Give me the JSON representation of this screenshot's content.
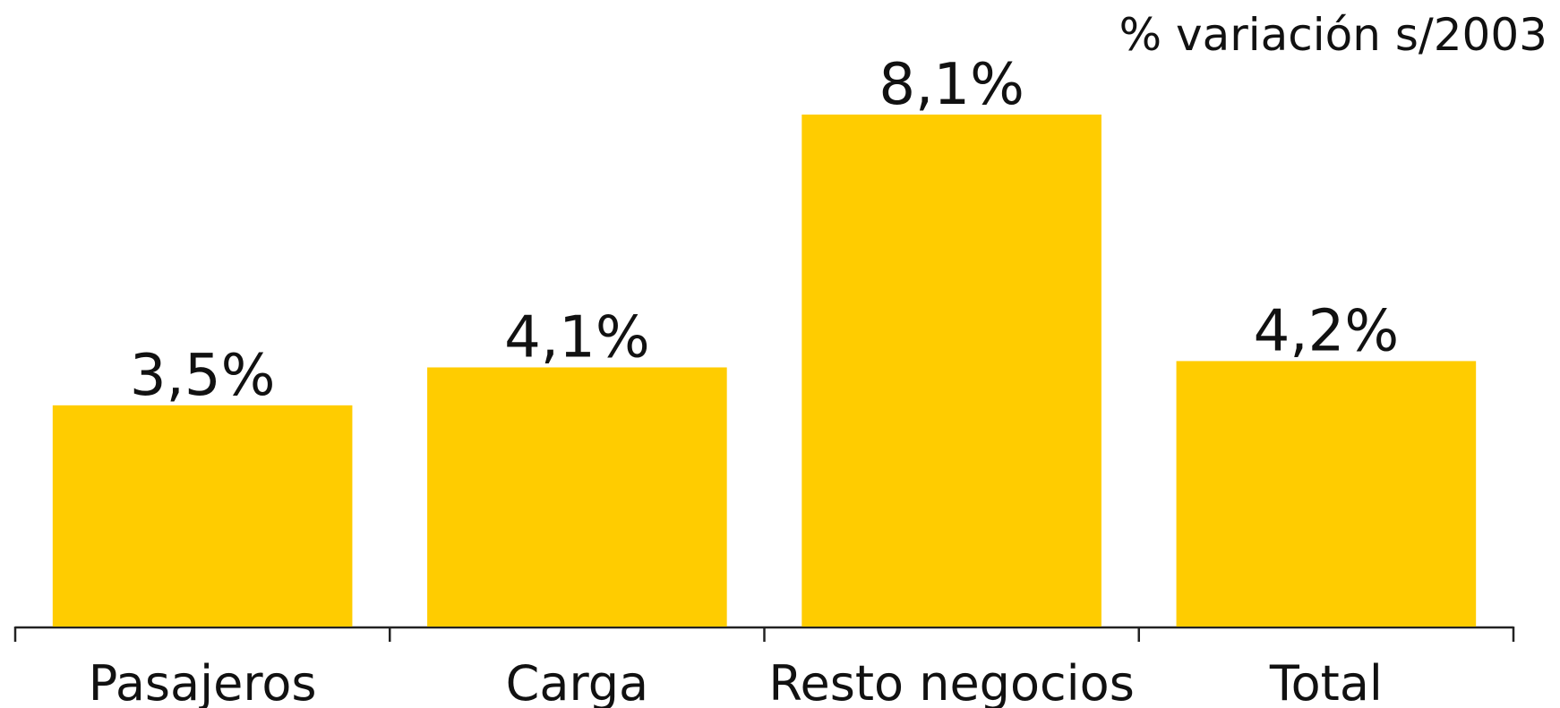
{
  "chart_data": {
    "type": "bar",
    "subtitle": "% variación s/2003",
    "categories": [
      "Pasajeros",
      "Carga",
      "Resto negocios",
      "Total"
    ],
    "values": [
      3.5,
      4.1,
      8.1,
      4.2
    ],
    "value_labels": [
      "3,5%",
      "4,1%",
      "8,1%",
      "4,2%"
    ],
    "color": "#ffcc00"
  }
}
